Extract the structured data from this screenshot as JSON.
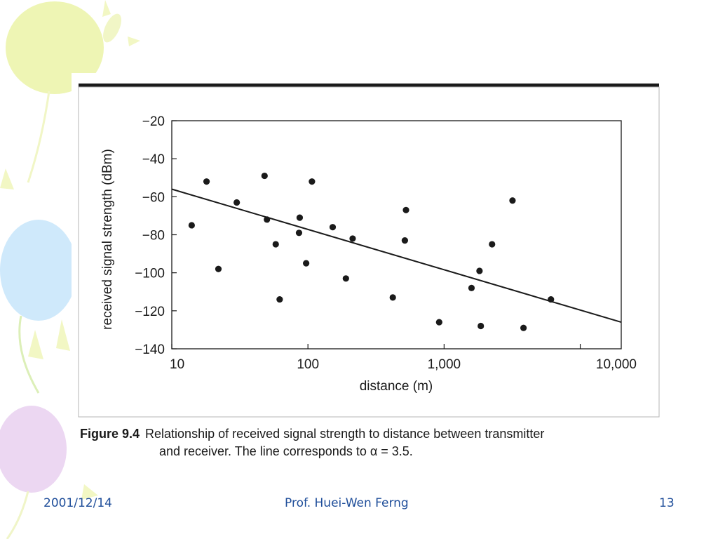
{
  "chart_data": {
    "type": "scatter",
    "xscale": "log",
    "xlabel": "distance (m)",
    "ylabel": "received signal strength (dBm)",
    "xlim": [
      10,
      20000
    ],
    "ylim": [
      -140,
      -20
    ],
    "x_ticks": [
      10,
      100,
      1000,
      10000
    ],
    "x_tick_labels": [
      "10",
      "100",
      "1,000",
      "10,000"
    ],
    "y_ticks": [
      -20,
      -40,
      -60,
      -80,
      -100,
      -120,
      -140
    ],
    "y_tick_labels": [
      "−20",
      "−40",
      "−60",
      "−80",
      "−100",
      "−120",
      "−140"
    ],
    "grid": false,
    "series": [
      {
        "type": "scatter",
        "x": [
          14,
          18,
          22,
          30,
          48,
          50,
          58,
          62,
          86,
          87,
          97,
          107,
          152,
          190,
          213,
          420,
          515,
          525,
          920,
          1590,
          1820,
          1860,
          2250,
          3180,
          3830,
          6090
        ],
        "y": [
          -75,
          -52,
          -98,
          -63,
          -49,
          -72,
          -85,
          -114,
          -79,
          -71,
          -95,
          -52,
          -76,
          -103,
          -82,
          -113,
          -83,
          -67,
          -126,
          -108,
          -99,
          -128,
          -85,
          -62,
          -129,
          -114
        ]
      },
      {
        "type": "line",
        "x": [
          10,
          20000
        ],
        "y": [
          -56,
          -126
        ]
      }
    ]
  },
  "caption": {
    "label": "Figure 9.4",
    "line1": "Relationship of received signal strength to distance between transmitter",
    "line2": "and receiver. The line corresponds to α = 3.5."
  },
  "footer": {
    "date": "2001/12/14",
    "author": "Prof. Huei-Wen Ferng",
    "page": "13"
  },
  "colors": {
    "footer_text": "#1f4e9a",
    "balloon_yellow": "#eef5b4",
    "balloon_blue": "#cfe9fb",
    "balloon_purple": "#ecd7f2",
    "ink": "#1a1a1a"
  }
}
